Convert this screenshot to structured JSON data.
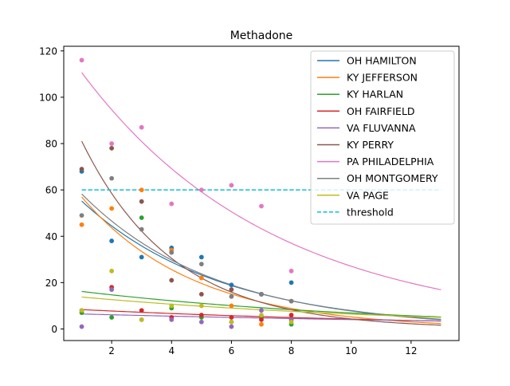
{
  "chart_data": {
    "type": "scatter",
    "title": "Methadone",
    "xlabel": "",
    "ylabel": "",
    "xlim": [
      0.4,
      13.6
    ],
    "ylim": [
      -5,
      122
    ],
    "xticks": [
      2,
      4,
      6,
      8,
      10,
      12
    ],
    "yticks": [
      0,
      20,
      40,
      60,
      80,
      100,
      120
    ],
    "grid": false,
    "legend_position": "top-right",
    "fit_x_range": [
      1,
      13
    ],
    "series": [
      {
        "name": "OH HAMILTON",
        "color": "#1f77b4",
        "points": [
          [
            1,
            68
          ],
          [
            2,
            38
          ],
          [
            3,
            31
          ],
          [
            4,
            35
          ],
          [
            5,
            31
          ],
          [
            6,
            19
          ],
          [
            7,
            15
          ],
          [
            8,
            20
          ]
        ],
        "fit": {
          "a": 68.5,
          "b": 0.216
        }
      },
      {
        "name": "KY JEFFERSON",
        "color": "#ff7f0e",
        "points": [
          [
            1,
            45
          ],
          [
            2,
            52
          ],
          [
            3,
            60
          ],
          [
            4,
            34
          ],
          [
            5,
            22
          ],
          [
            6,
            10
          ],
          [
            7,
            2
          ],
          [
            8,
            4
          ]
        ],
        "fit": {
          "a": 74.3,
          "b": 0.266
        }
      },
      {
        "name": "KY HARLAN",
        "color": "#2ca02c",
        "points": [
          [
            1,
            7
          ],
          [
            2,
            5
          ],
          [
            3,
            48
          ],
          [
            4,
            9
          ],
          [
            5,
            5
          ],
          [
            6,
            3
          ],
          [
            7,
            5
          ],
          [
            8,
            2
          ]
        ],
        "fit": {
          "a": 17.8,
          "b": 0.095
        }
      },
      {
        "name": "OH FAIRFIELD",
        "color": "#d62728",
        "points": [
          [
            1,
            8
          ],
          [
            2,
            18
          ],
          [
            3,
            8
          ],
          [
            4,
            5
          ],
          [
            5,
            6
          ],
          [
            6,
            5
          ],
          [
            7,
            4
          ],
          [
            8,
            6
          ]
        ],
        "fit": {
          "a": 9.0,
          "b": 0.075
        }
      },
      {
        "name": "VA FLUVANNA",
        "color": "#9467bd",
        "points": [
          [
            1,
            1
          ],
          [
            2,
            17
          ],
          [
            3,
            4
          ],
          [
            4,
            4
          ],
          [
            5,
            3
          ],
          [
            6,
            1
          ],
          [
            7,
            8
          ],
          [
            8,
            4
          ]
        ],
        "fit": {
          "a": 6.8,
          "b": 0.052
        }
      },
      {
        "name": "KY PERRY",
        "color": "#8c564b",
        "points": [
          [
            1,
            69
          ],
          [
            2,
            78
          ],
          [
            3,
            55
          ],
          [
            4,
            21
          ],
          [
            5,
            15
          ],
          [
            6,
            17
          ],
          [
            7,
            15
          ],
          [
            8,
            12
          ]
        ],
        "fit": {
          "a": 112.3,
          "b": 0.326
        }
      },
      {
        "name": "PA PHILADELPHIA",
        "color": "#e377c2",
        "points": [
          [
            1,
            116
          ],
          [
            2,
            80
          ],
          [
            3,
            87
          ],
          [
            4,
            54
          ],
          [
            5,
            60
          ],
          [
            6,
            62
          ],
          [
            7,
            53
          ],
          [
            8,
            25
          ]
        ],
        "fit": {
          "a": 129.4,
          "b": 0.1565
        }
      },
      {
        "name": "OH MONTGOMERY",
        "color": "#7f7f7f",
        "points": [
          [
            1,
            49
          ],
          [
            2,
            65
          ],
          [
            3,
            43
          ],
          [
            4,
            33
          ],
          [
            5,
            28
          ],
          [
            6,
            14
          ],
          [
            7,
            15
          ],
          [
            8,
            12
          ]
        ],
        "fit": {
          "a": 72.9,
          "b": 0.224
        }
      },
      {
        "name": "VA PAGE",
        "color": "#bcbd22",
        "points": [
          [
            1,
            8
          ],
          [
            2,
            25
          ],
          [
            3,
            4
          ],
          [
            4,
            10
          ],
          [
            5,
            10
          ],
          [
            6,
            3
          ],
          [
            7,
            6
          ],
          [
            8,
            3
          ]
        ],
        "fit": {
          "a": 15.0,
          "b": 0.085
        }
      }
    ],
    "threshold": {
      "name": "threshold",
      "value": 60,
      "color": "#17becf",
      "style": "dashed"
    }
  }
}
